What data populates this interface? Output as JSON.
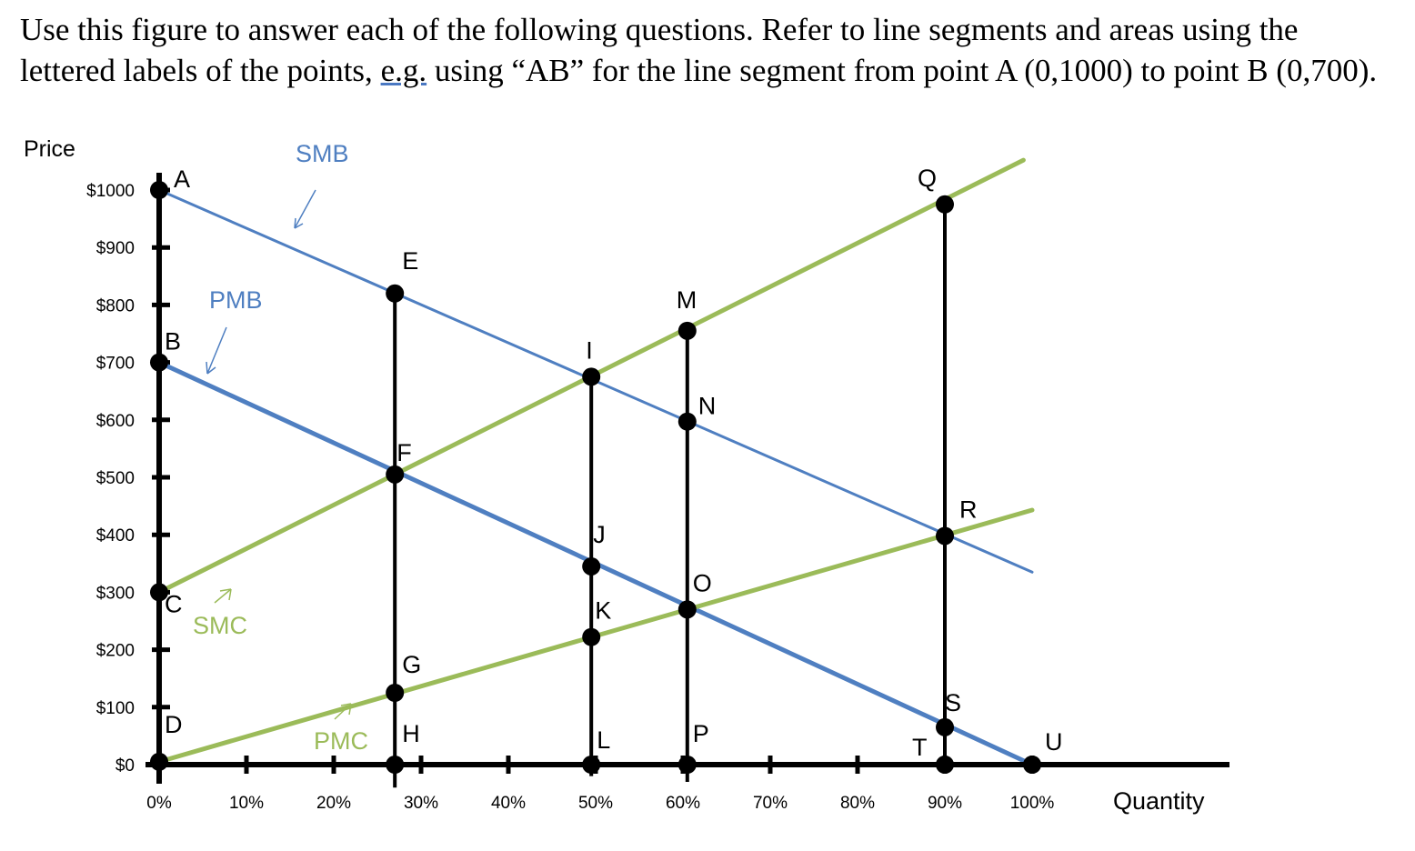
{
  "question": {
    "part1": "Use this figure to answer each of the following questions. Refer to line segments and areas using the lettered labels of the points, ",
    "eg": "e.g.",
    "part2": " using “AB” for the line segment from point A (0,1000) to point B (0,700)."
  },
  "colors": {
    "benefit": "#4f7fc1",
    "cost": "#9bbb59",
    "axis": "#000000"
  },
  "chart_data": {
    "type": "line",
    "xlabel": "Quantity",
    "ylabel": "Price",
    "xlim": [
      0,
      100
    ],
    "ylim": [
      0,
      1000
    ],
    "x_ticks": [
      0,
      10,
      20,
      30,
      40,
      50,
      60,
      70,
      80,
      90,
      100
    ],
    "x_tick_labels": [
      "0%",
      "10%",
      "20%",
      "30%",
      "40%",
      "50%",
      "60%",
      "70%",
      "80%",
      "90%",
      "100%"
    ],
    "y_ticks": [
      0,
      100,
      200,
      300,
      400,
      500,
      600,
      700,
      800,
      900,
      1000
    ],
    "y_tick_labels": [
      "$0",
      "$100",
      "$200",
      "$300",
      "$400",
      "$500",
      "$600",
      "$700",
      "$800",
      "$900",
      "$1000"
    ],
    "series": [
      {
        "name": "SMB",
        "x": [
          0,
          100
        ],
        "y": [
          1000,
          335
        ],
        "color": "#4f7fc1"
      },
      {
        "name": "PMB",
        "x": [
          0,
          100
        ],
        "y": [
          700,
          0
        ],
        "color": "#4f7fc1"
      },
      {
        "name": "SMC",
        "x": [
          0,
          99
        ],
        "y": [
          300,
          1052
        ],
        "color": "#9bbb59"
      },
      {
        "name": "PMC",
        "x": [
          0,
          100
        ],
        "y": [
          5,
          443
        ],
        "color": "#9bbb59"
      }
    ],
    "vertical_lines": [
      {
        "x": 27,
        "y": [
          -40,
          820
        ]
      },
      {
        "x": 49.5,
        "y": [
          -20,
          675
        ]
      },
      {
        "x": 60.5,
        "y": [
          -30,
          755
        ]
      },
      {
        "x": 90,
        "y": [
          0,
          975
        ]
      }
    ],
    "points": [
      {
        "label": "A",
        "x": 0,
        "y": 1000
      },
      {
        "label": "B",
        "x": 0,
        "y": 700
      },
      {
        "label": "C",
        "x": 0,
        "y": 300
      },
      {
        "label": "D",
        "x": 0,
        "y": 5
      },
      {
        "label": "E",
        "x": 27,
        "y": 820
      },
      {
        "label": "F",
        "x": 27,
        "y": 505
      },
      {
        "label": "G",
        "x": 27,
        "y": 125
      },
      {
        "label": "H",
        "x": 27,
        "y": 0
      },
      {
        "label": "I",
        "x": 49.5,
        "y": 675
      },
      {
        "label": "J",
        "x": 49.5,
        "y": 345
      },
      {
        "label": "K",
        "x": 49.5,
        "y": 222
      },
      {
        "label": "L",
        "x": 49.5,
        "y": 0
      },
      {
        "label": "M",
        "x": 60.5,
        "y": 755
      },
      {
        "label": "N",
        "x": 60.5,
        "y": 597
      },
      {
        "label": "O",
        "x": 60.5,
        "y": 270
      },
      {
        "label": "P",
        "x": 60.5,
        "y": 0
      },
      {
        "label": "Q",
        "x": 90,
        "y": 975
      },
      {
        "label": "R",
        "x": 90,
        "y": 398
      },
      {
        "label": "S",
        "x": 90,
        "y": 65
      },
      {
        "label": "T",
        "x": 90,
        "y": 0
      },
      {
        "label": "U",
        "x": 100,
        "y": 0
      }
    ]
  }
}
